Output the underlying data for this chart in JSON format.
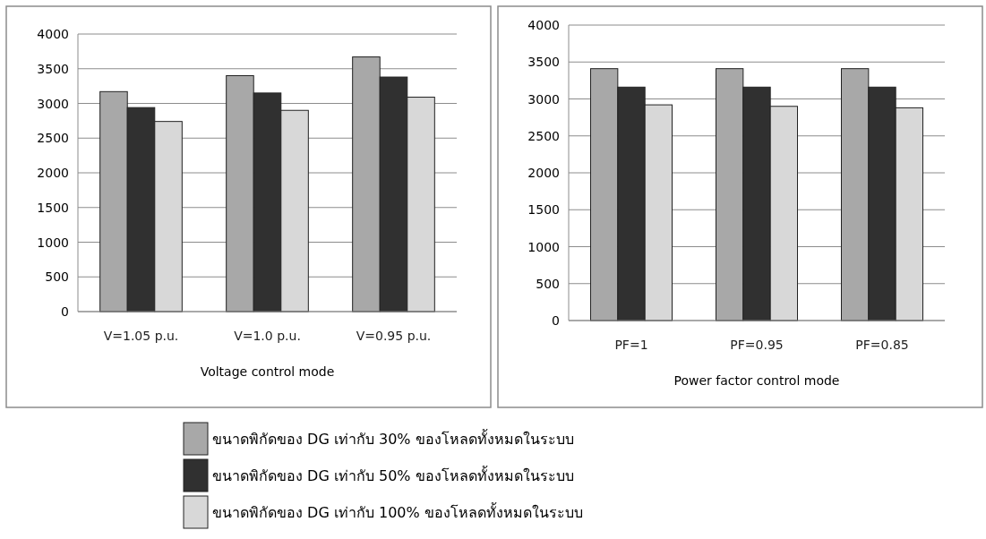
{
  "chart_data": [
    {
      "type": "bar",
      "xlabel": "Voltage control mode",
      "categories": [
        "V=1.05 p.u.",
        "V=1.0 p.u.",
        "V=0.95 p.u."
      ],
      "ylim": [
        0,
        4000
      ],
      "yticks": [
        0,
        500,
        1000,
        1500,
        2000,
        2500,
        3000,
        3500,
        4000
      ],
      "grid": "y",
      "legend": "bottom",
      "series": [
        {
          "name": "ขนาดพิกัดของ DG เท่ากับ 30% ของโหลดทั้งหมดในระบบ",
          "color": "#a8a8a8",
          "values": [
            3170,
            3400,
            3670
          ]
        },
        {
          "name": "ขนาดพิกัดของ DG เท่ากับ 50% ของโหลดทั้งหมดในระบบ",
          "color": "#303030",
          "values": [
            2940,
            3150,
            3380
          ]
        },
        {
          "name": "ขนาดพิกัดของ DG เท่ากับ 100% ของโหลดทั้งหมดในระบบ",
          "color": "#d8d8d8",
          "values": [
            2740,
            2900,
            3090
          ]
        }
      ]
    },
    {
      "type": "bar",
      "xlabel": "Power factor control mode",
      "categories": [
        "PF=1",
        "PF=0.95",
        "PF=0.85"
      ],
      "ylim": [
        0,
        4000
      ],
      "yticks": [
        0,
        500,
        1000,
        1500,
        2000,
        2500,
        3000,
        3500,
        4000
      ],
      "grid": "y",
      "series": [
        {
          "color": "#a8a8a8",
          "values": [
            3410,
            3410,
            3410
          ]
        },
        {
          "color": "#303030",
          "values": [
            3160,
            3160,
            3160
          ]
        },
        {
          "color": "#d8d8d8",
          "values": [
            2920,
            2900,
            2880
          ]
        }
      ]
    }
  ]
}
